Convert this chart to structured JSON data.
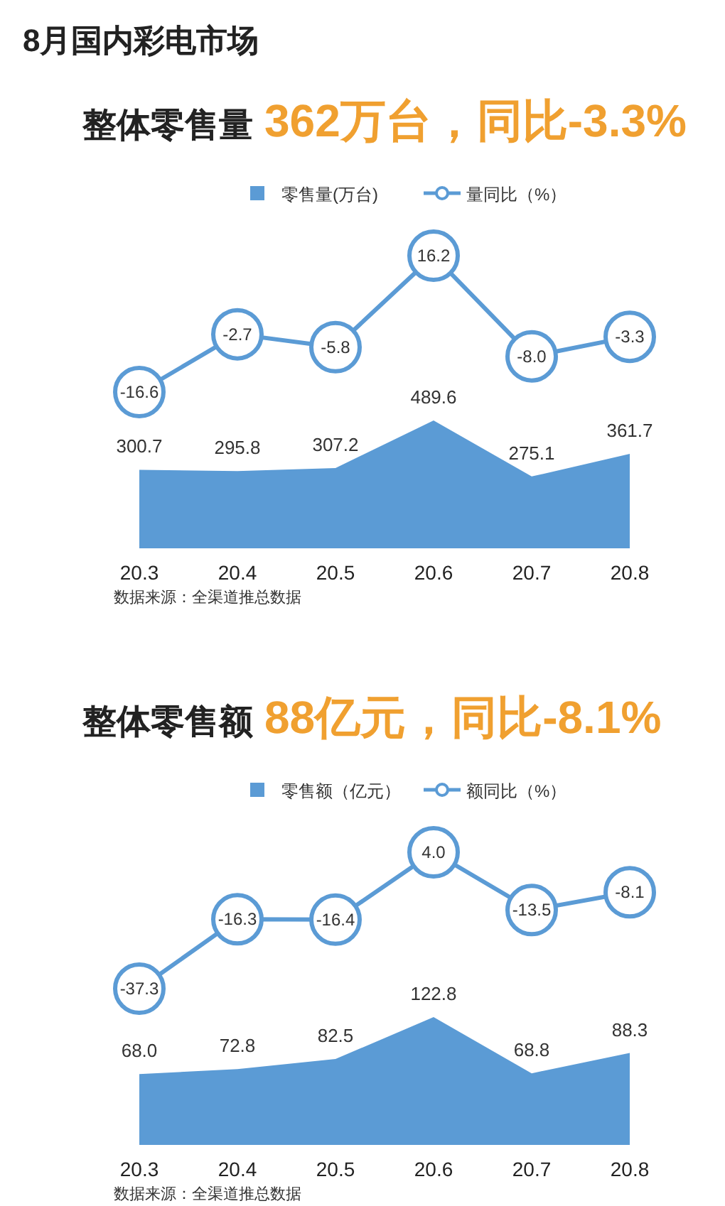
{
  "chart_data": [
    {
      "type": "line",
      "title": "8月国内彩电市场",
      "subtitle": "整体零售量 362万台，同比-3.3%",
      "categories": [
        null,
        null,
        null,
        null,
        null,
        null
      ],
      "legend": "top",
      "marker": "circle",
      "series": [
        {
          "name": "量同比（%）",
          "color": "#5b9bd5",
          "values": [
            -16.6,
            -2.7,
            -5.8,
            16.2,
            -8.0,
            -3.3
          ],
          "value_labels": [
            "-16.6",
            "-2.7",
            "-5.8",
            "16.2",
            "-8.0",
            "-3.3"
          ]
        }
      ]
    },
    {
      "type": "area",
      "categories": [
        "20.3",
        "20.4",
        "20.5",
        "20.6",
        "20.7",
        "20.8"
      ],
      "legend": "top",
      "tick_labels": "x",
      "series": [
        {
          "name": "零售量(万台)",
          "color": "#5b9bd5",
          "values": [
            300.7,
            295.8,
            307.2,
            489.6,
            275.1,
            361.7
          ],
          "value_labels": [
            "300.7",
            "295.8",
            "307.2",
            "489.6",
            "275.1",
            "361.7"
          ]
        }
      ],
      "annotations": [
        "数据来源：全渠道推总数据"
      ]
    },
    {
      "type": "line",
      "title": "整体零售额 88亿元，同比-8.1%",
      "categories": [
        null,
        null,
        null,
        null,
        null,
        null
      ],
      "legend": "top",
      "marker": "circle",
      "series": [
        {
          "name": "额同比（%）",
          "color": "#5b9bd5",
          "values": [
            -37.3,
            -16.3,
            -16.4,
            4.0,
            -13.5,
            -8.1
          ],
          "value_labels": [
            "-37.3",
            "-16.3",
            "-16.4",
            "4.0",
            "-13.5",
            "-8.1"
          ]
        }
      ]
    },
    {
      "type": "area",
      "categories": [
        "20.3",
        "20.4",
        "20.5",
        "20.6",
        "20.7",
        "20.8"
      ],
      "legend": "top",
      "tick_labels": "x",
      "series": [
        {
          "name": "零售额（亿元）",
          "color": "#5b9bd5",
          "values": [
            68.0,
            72.8,
            82.5,
            122.8,
            68.8,
            88.3
          ],
          "value_labels": [
            "68.0",
            "72.8",
            "82.5",
            "122.8",
            "68.8",
            "88.3"
          ]
        }
      ],
      "annotations": [
        "数据来源：全渠道推总数据"
      ]
    }
  ]
}
